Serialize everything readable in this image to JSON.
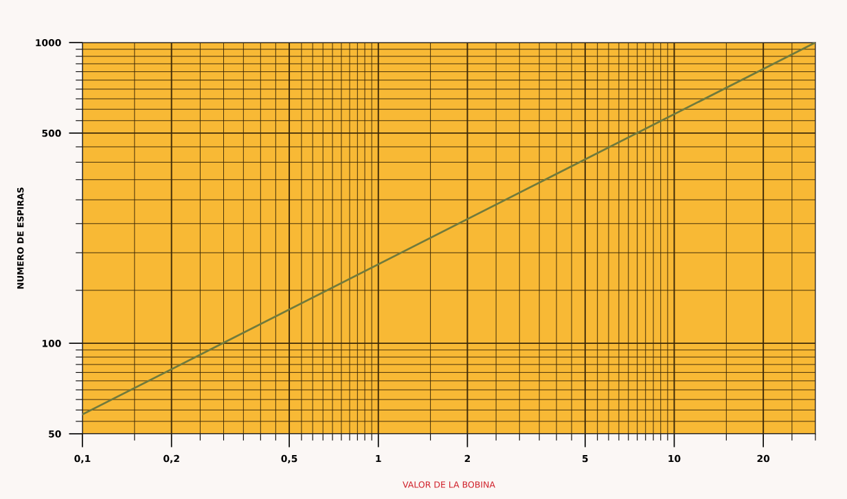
{
  "chart_data": {
    "type": "line",
    "xlabel": "VALOR DE LA BOBINA",
    "ylabel": "NUMERO DE ESPIRAS",
    "log": "xy",
    "grid": true,
    "xlim": [
      0.1,
      30
    ],
    "ylim": [
      50,
      1000
    ],
    "xticks": [
      {
        "value": 0.1,
        "label": "0,1"
      },
      {
        "value": 0.15,
        "label": null
      },
      {
        "value": 0.2,
        "label": "0,2"
      },
      {
        "value": 0.25,
        "label": null
      },
      {
        "value": 0.3,
        "label": null
      },
      {
        "value": 0.35,
        "label": null
      },
      {
        "value": 0.4,
        "label": null
      },
      {
        "value": 0.45,
        "label": null
      },
      {
        "value": 0.5,
        "label": "0,5"
      },
      {
        "value": 0.55,
        "label": null
      },
      {
        "value": 0.6,
        "label": null
      },
      {
        "value": 0.65,
        "label": null
      },
      {
        "value": 0.7,
        "label": null
      },
      {
        "value": 0.75,
        "label": null
      },
      {
        "value": 0.8,
        "label": null
      },
      {
        "value": 0.85,
        "label": null
      },
      {
        "value": 0.9,
        "label": null
      },
      {
        "value": 0.95,
        "label": null
      },
      1,
      {
        "value": 1.5,
        "label": null
      },
      2,
      {
        "value": 2.5,
        "label": null
      },
      {
        "value": 3,
        "label": null
      },
      {
        "value": 3.5,
        "label": null
      },
      {
        "value": 4,
        "label": null
      },
      {
        "value": 4.5,
        "label": null
      },
      5,
      {
        "value": 5.5,
        "label": null
      },
      {
        "value": 6,
        "label": null
      },
      {
        "value": 6.5,
        "label": null
      },
      {
        "value": 7,
        "label": null
      },
      {
        "value": 7.5,
        "label": null
      },
      {
        "value": 8,
        "label": null
      },
      {
        "value": 8.5,
        "label": null
      },
      {
        "value": 9,
        "label": null
      },
      {
        "value": 9.5,
        "label": null
      },
      10,
      {
        "value": 15,
        "label": null
      },
      20,
      {
        "value": 25,
        "label": null
      },
      {
        "value": 30,
        "label": null
      }
    ],
    "yticks": [
      50,
      {
        "value": 55,
        "label": null
      },
      {
        "value": 60,
        "label": null
      },
      {
        "value": 65,
        "label": null
      },
      {
        "value": 70,
        "label": null
      },
      {
        "value": 75,
        "label": null
      },
      {
        "value": 80,
        "label": null
      },
      {
        "value": 85,
        "label": null
      },
      {
        "value": 90,
        "label": null
      },
      {
        "value": 95,
        "label": null
      },
      100,
      {
        "value": 150,
        "label": null
      },
      {
        "value": 200,
        "label": null
      },
      {
        "value": 250,
        "label": null
      },
      {
        "value": 300,
        "label": null
      },
      {
        "value": 350,
        "label": null
      },
      {
        "value": 400,
        "label": null
      },
      {
        "value": 450,
        "label": null
      },
      500,
      {
        "value": 550,
        "label": null
      },
      {
        "value": 600,
        "label": null
      },
      {
        "value": 650,
        "label": null
      },
      {
        "value": 700,
        "label": null
      },
      {
        "value": 750,
        "label": null
      },
      {
        "value": 800,
        "label": null
      },
      {
        "value": 850,
        "label": null
      },
      {
        "value": 900,
        "label": null
      },
      {
        "value": 950,
        "label": null
      },
      1000
    ],
    "series": [
      {
        "color": "#707a3c",
        "x": [
          0.1,
          30
        ],
        "values": [
          58,
          1000
        ]
      }
    ]
  }
}
